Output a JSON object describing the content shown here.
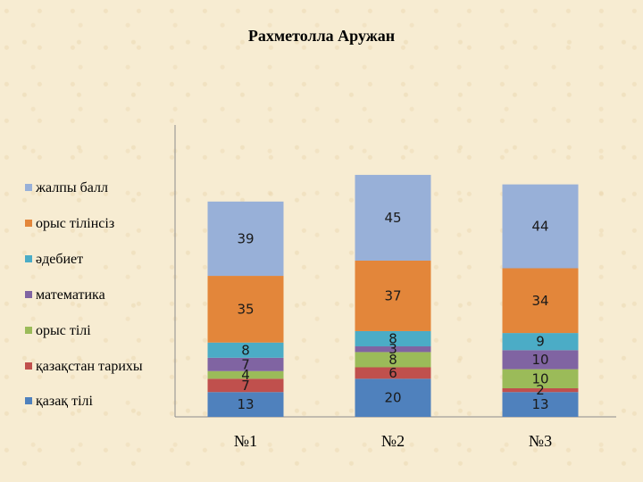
{
  "chart_data": {
    "type": "bar",
    "stacked": true,
    "title": "Рахметолла Аружан",
    "xlabel": "",
    "ylabel": "",
    "categories": [
      "№1",
      "№2",
      "№3"
    ],
    "ylim": [
      0,
      171
    ],
    "grid": false,
    "legend_position": "left",
    "series": [
      {
        "name": "қазақ тілі",
        "color": "#4f81bd",
        "values": [
          13,
          20,
          13
        ]
      },
      {
        "name": "қазақстан тарихы",
        "color": "#c0504d",
        "values": [
          7,
          6,
          2
        ]
      },
      {
        "name": "орыс тілі",
        "color": "#9bbb59",
        "values": [
          4,
          8,
          10
        ]
      },
      {
        "name": "математика",
        "color": "#8064a2",
        "values": [
          7,
          3,
          10
        ]
      },
      {
        "name": "әдебиет",
        "color": "#4bacc6",
        "values": [
          8,
          8,
          9
        ]
      },
      {
        "name": "орыс тілінсіз",
        "color": "#e3863a",
        "values": [
          35,
          37,
          34
        ]
      },
      {
        "name": "жалпы балл",
        "color": "#98b0d8",
        "values": [
          39,
          45,
          44
        ]
      }
    ]
  }
}
